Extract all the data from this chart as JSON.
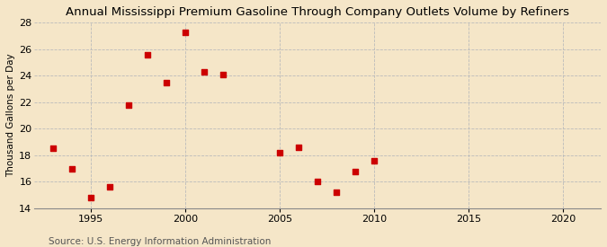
{
  "years": [
    1993,
    1994,
    1995,
    1996,
    1997,
    1998,
    1999,
    2000,
    2001,
    2002,
    2005,
    2006,
    2007,
    2008,
    2009,
    2010
  ],
  "values": [
    18.5,
    17.0,
    14.8,
    15.6,
    21.8,
    25.6,
    23.5,
    27.3,
    24.3,
    24.1,
    18.2,
    18.6,
    16.0,
    15.2,
    16.8,
    17.6
  ],
  "title": "Annual Mississippi Premium Gasoline Through Company Outlets Volume by Refiners",
  "ylabel": "Thousand Gallons per Day",
  "source": "Source: U.S. Energy Information Administration",
  "xlim": [
    1992,
    2022
  ],
  "ylim": [
    14,
    28
  ],
  "yticks": [
    14,
    16,
    18,
    20,
    22,
    24,
    26,
    28
  ],
  "xticks": [
    1995,
    2000,
    2005,
    2010,
    2015,
    2020
  ],
  "marker_color": "#cc0000",
  "bg_color": "#f5e6c8",
  "grid_color": "#bbbbbb",
  "title_fontsize": 9.5,
  "label_fontsize": 7.5,
  "tick_fontsize": 8,
  "source_fontsize": 7.5
}
